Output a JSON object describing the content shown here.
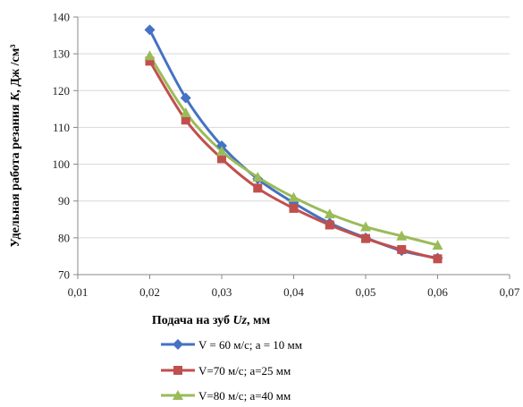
{
  "chart_data": {
    "type": "line",
    "xlabel_main": "Подача на зуб ",
    "xlabel_var": "Uz",
    "xlabel_unit": ", мм",
    "ylabel_main": "Удельная работа резания ",
    "ylabel_var": "K",
    "ylabel_unit": ", Дж /см³",
    "xlim": [
      0.01,
      0.07
    ],
    "ylim": [
      70,
      140
    ],
    "x_ticks": [
      "0,01",
      "0,02",
      "0,03",
      "0,04",
      "0,05",
      "0,06",
      "0,07"
    ],
    "y_ticks": [
      "70",
      "80",
      "90",
      "100",
      "110",
      "120",
      "130",
      "140"
    ],
    "grid": "horizontal",
    "legend_position": "bottom",
    "x": [
      0.02,
      0.025,
      0.03,
      0.035,
      0.04,
      0.045,
      0.05,
      0.055,
      0.06
    ],
    "series": [
      {
        "name": "V = 60 м/с; a = 10 мм",
        "color": "#4472C4",
        "marker": "diamond",
        "values": [
          136.5,
          118,
          105,
          96,
          89.5,
          84,
          80,
          76.5,
          74.5
        ]
      },
      {
        "name": "V=70 м/с; a=25 мм",
        "color": "#C0504D",
        "marker": "square",
        "values": [
          128,
          112,
          101.5,
          93.5,
          88,
          83.5,
          79.8,
          76.8,
          74.3
        ]
      },
      {
        "name": "V=80 м/с; a=40 мм",
        "color": "#9BBB59",
        "marker": "triangle",
        "values": [
          129.5,
          114,
          103.5,
          96.5,
          91,
          86.5,
          83,
          80.5,
          78
        ]
      }
    ]
  }
}
